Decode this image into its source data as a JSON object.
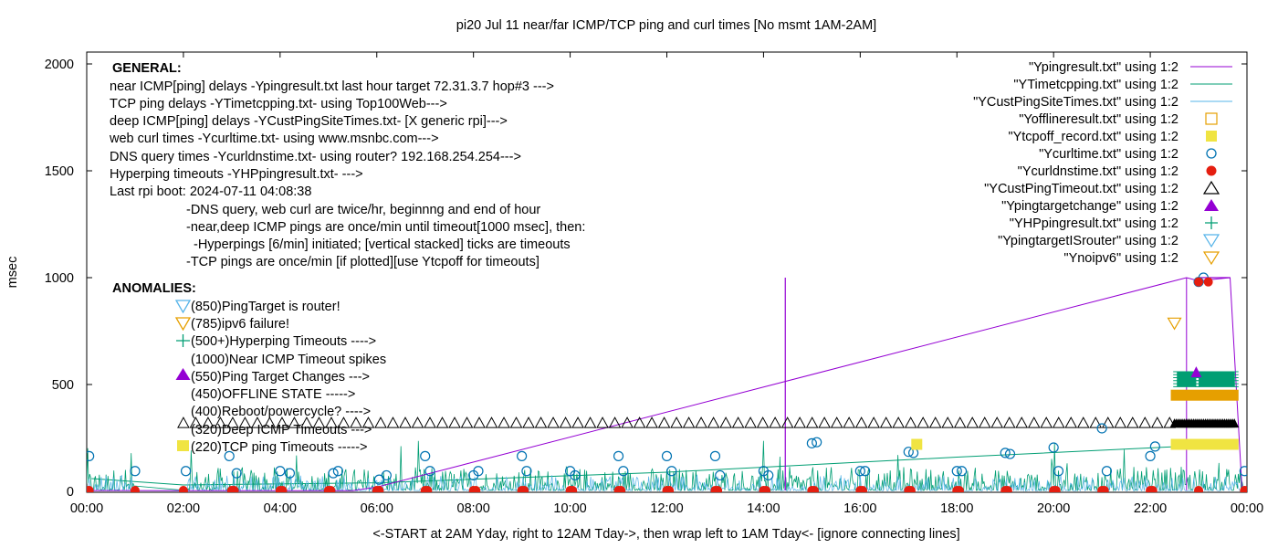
{
  "chart_data": {
    "type": "scatter",
    "title": "pi20 Jul 11  near/far ICMP/TCP ping and curl times [No msmt 1AM-2AM]",
    "xlabel": "<-START at 2AM Yday, right to 12AM Tday->, then wrap left to 1AM Tday<- [ignore connecting lines]",
    "ylabel": "msec",
    "xlim": [
      0,
      24
    ],
    "ylim": [
      0,
      2100
    ],
    "x_ticks": [
      "00:00",
      "02:00",
      "04:00",
      "06:00",
      "08:00",
      "10:00",
      "12:00",
      "14:00",
      "16:00",
      "18:00",
      "20:00",
      "22:00",
      "00:00"
    ],
    "y_ticks": [
      "0",
      "500",
      "1000",
      "1500",
      "2000"
    ],
    "y_tick_values": [
      0,
      500,
      1000,
      1500,
      2000
    ],
    "legend_position": "top-right",
    "legend": [
      {
        "label": "\"Ypingresult.txt\" using 1:2",
        "style": "line",
        "color": "#9400d3"
      },
      {
        "label": "\"YTimetcpping.txt\" using 1:2",
        "style": "line",
        "color": "#009e73"
      },
      {
        "label": "\"YCustPingSiteTimes.txt\" using 1:2",
        "style": "line",
        "color": "#56b4e9"
      },
      {
        "label": "\"Yofflineresult.txt\" using 1:2",
        "style": "open-square",
        "color": "#e69f00"
      },
      {
        "label": "\"Ytcpoff_record.txt\" using 1:2",
        "style": "filled-square",
        "color": "#f0e442"
      },
      {
        "label": "\"Ycurltime.txt\" using 1:2",
        "style": "open-circle",
        "color": "#0072b2"
      },
      {
        "label": "\"Ycurldnstime.txt\" using 1:2",
        "style": "filled-circle",
        "color": "#e51e10"
      },
      {
        "label": "\"YCustPingTimeout.txt\" using 1:2",
        "style": "open-triangle",
        "color": "#000000"
      },
      {
        "label": "\"Ypingtargetchange\" using 1:2",
        "style": "filled-triangle",
        "color": "#9400d3"
      },
      {
        "label": "\"YHPpingresult.txt\" using 1:2",
        "style": "plus",
        "color": "#009e73"
      },
      {
        "label": "\"YpingtargetISrouter\" using 1:2",
        "style": "open-down-triangle",
        "color": "#56b4e9"
      },
      {
        "label": "\"Ynoipv6\" using 1:2",
        "style": "open-down-triangle",
        "color": "#e69f00"
      }
    ],
    "annotations": {
      "general_header": "GENERAL:",
      "general_lines": [
        "near ICMP[ping] delays -Ypingresult.txt last hour target 72.31.3.7 hop#3 --->",
        "TCP ping delays -YTimetcpping.txt- using Top100Web--->",
        "deep ICMP[ping] delays -YCustPingSiteTimes.txt- [X generic rpi]--->",
        "web curl times -Ycurltime.txt- using www.msnbc.com--->",
        "DNS query times -Ycurldnstime.txt- using router? 192.168.254.254--->",
        "Hyperping timeouts -YHPpingresult.txt- --->",
        "Last rpi boot: 2024-07-11 04:08:38"
      ],
      "general_notes": [
        "-DNS query, web curl are twice/hr, beginnng and end of hour",
        "-near,deep ICMP pings are once/min until timeout[1000 msec], then:",
        "-Hyperpings [6/min] initiated; [vertical stacked] ticks are timeouts",
        "-TCP pings are once/min [if plotted][use Ytcpoff for timeouts]"
      ],
      "anomalies_header": "ANOMALIES:",
      "anomalies": [
        "(850)PingTarget is router!",
        "(785)ipv6 failure!",
        "(500+)Hyperping Timeouts ---->",
        "(1000)Near ICMP Timeout spikes",
        "(550)Ping Target Changes --->",
        "(450)OFFLINE STATE ----->",
        "(400)Reboot/powercycle? ---->",
        "(320)Deep ICMP Timeouts --->",
        "(220)TCP ping Timeouts ----->"
      ]
    },
    "series": [
      {
        "name": "Ypingresult.txt",
        "kind": "line",
        "points": [
          [
            0.1,
            4
          ],
          [
            2.0,
            3
          ],
          [
            5.5,
            3
          ],
          [
            6.0,
            20
          ],
          [
            22.75,
            1000
          ],
          [
            23.0,
            985
          ],
          [
            23.65,
            1000
          ],
          [
            23.9,
            3
          ]
        ],
        "spike": {
          "x": 14.45,
          "y": 1000
        }
      },
      {
        "name": "YCustPingTimeout.txt",
        "kind": "row",
        "y": 320,
        "x_start": 2.0,
        "x_end": 22.5,
        "step": 0.255
      },
      {
        "name": "Ycurldnstime.txt",
        "kind": "markers",
        "y": 0,
        "x": [
          0.05,
          1.0,
          2.0,
          3.0,
          3.05,
          4.0,
          4.05,
          5.0,
          5.05,
          6.0,
          6.05,
          7.0,
          7.05,
          8.0,
          8.05,
          9.0,
          9.05,
          10.0,
          10.05,
          11.0,
          11.05,
          12.0,
          12.05,
          13.0,
          13.05,
          14.0,
          14.05,
          15.0,
          15.05,
          16.0,
          16.05,
          17.0,
          17.05,
          18.0,
          18.05,
          19.0,
          19.05,
          20.0,
          20.05,
          21.0,
          21.05,
          22.0,
          22.05,
          23.0,
          23.95
        ]
      },
      {
        "name": "Ycurltime.txt",
        "kind": "markers",
        "points": [
          [
            0.05,
            165
          ],
          [
            1.0,
            95
          ],
          [
            2.05,
            95
          ],
          [
            2.95,
            165
          ],
          [
            3.1,
            85
          ],
          [
            4.0,
            95
          ],
          [
            4.2,
            85
          ],
          [
            5.1,
            85
          ],
          [
            5.2,
            95
          ],
          [
            6.05,
            55
          ],
          [
            6.2,
            75
          ],
          [
            7.0,
            165
          ],
          [
            7.1,
            95
          ],
          [
            8.0,
            75
          ],
          [
            8.1,
            95
          ],
          [
            9.0,
            165
          ],
          [
            9.1,
            95
          ],
          [
            10.0,
            95
          ],
          [
            10.1,
            75
          ],
          [
            11.0,
            165
          ],
          [
            11.1,
            95
          ],
          [
            12.0,
            165
          ],
          [
            12.1,
            95
          ],
          [
            13.0,
            165
          ],
          [
            13.1,
            75
          ],
          [
            14.0,
            95
          ],
          [
            14.1,
            75
          ],
          [
            15.0,
            225
          ],
          [
            15.1,
            230
          ],
          [
            16.0,
            95
          ],
          [
            16.1,
            95
          ],
          [
            17.0,
            185
          ],
          [
            17.1,
            180
          ],
          [
            18.0,
            95
          ],
          [
            18.1,
            95
          ],
          [
            19.0,
            180
          ],
          [
            19.1,
            175
          ],
          [
            20.0,
            205
          ],
          [
            20.1,
            95
          ],
          [
            21.0,
            295
          ],
          [
            21.1,
            95
          ],
          [
            22.0,
            165
          ],
          [
            22.1,
            210
          ],
          [
            23.0,
            980
          ],
          [
            23.1,
            1000
          ],
          [
            23.95,
            95
          ]
        ]
      },
      {
        "name": "Ytcpoff_record.txt",
        "points": [
          [
            17.17,
            220
          ],
          [
            22.5,
            220
          ],
          [
            23.4,
            220
          ]
        ]
      },
      {
        "name": "Ynoipv6",
        "points": [
          [
            22.5,
            785
          ]
        ]
      }
    ]
  }
}
